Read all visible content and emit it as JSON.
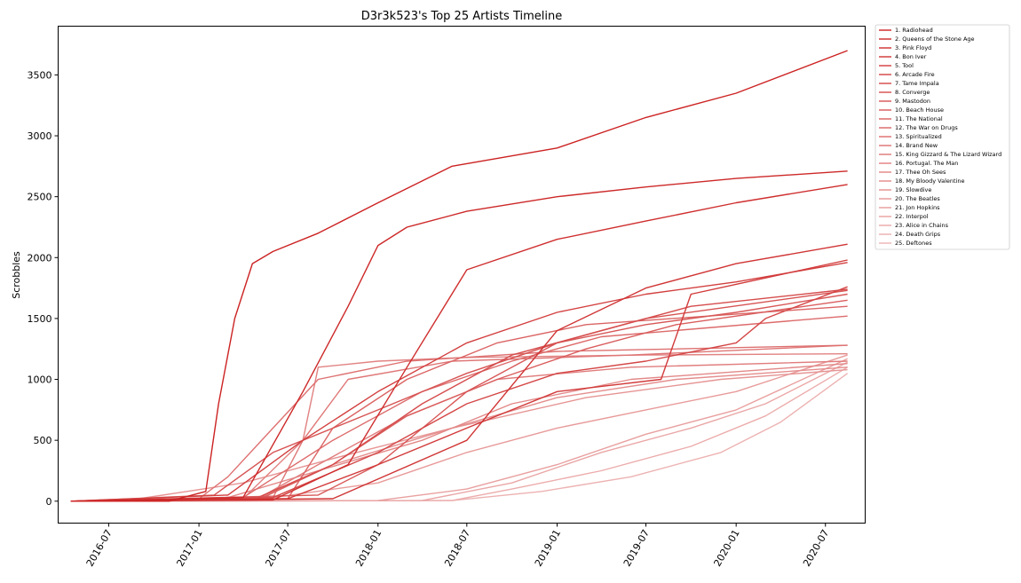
{
  "chart_data": {
    "type": "line",
    "title": "D3r3k523's Top 25 Artists Timeline",
    "xlabel": "",
    "ylabel": "Scrobbles",
    "x_ticks": [
      "2016-07",
      "2017-01",
      "2017-07",
      "2018-01",
      "2018-07",
      "2019-01",
      "2019-07",
      "2020-01",
      "2020-07"
    ],
    "y_ticks": [
      "0",
      "500",
      "1000",
      "1500",
      "2000",
      "2500",
      "3000",
      "3500"
    ],
    "xlim": [
      "2016-03-20",
      "2020-09-20"
    ],
    "ylim": [
      -180,
      3900
    ],
    "legend_position": "outside-right",
    "grid": false,
    "base_color": "#cc2222",
    "series": [
      {
        "name": "1. Radiohead",
        "x": [
          "2016-04-15",
          "2016-11-01",
          "2017-01-15",
          "2017-02-10",
          "2017-03-15",
          "2017-04-20",
          "2017-06-01",
          "2017-09-01",
          "2018-01-01",
          "2018-06-01",
          "2019-01-01",
          "2019-07-01",
          "2020-01-01",
          "2020-08-15"
        ],
        "values": [
          0,
          0,
          80,
          800,
          1500,
          1950,
          2050,
          2200,
          2450,
          2750,
          2900,
          3150,
          3350,
          3700
        ]
      },
      {
        "name": "2. Queens of the Stone Age",
        "x": [
          "2016-04-15",
          "2017-04-01",
          "2017-08-01",
          "2017-11-01",
          "2018-01-01",
          "2018-03-01",
          "2018-07-01",
          "2019-01-01",
          "2019-07-01",
          "2020-01-01",
          "2020-08-15"
        ],
        "values": [
          0,
          30,
          900,
          1600,
          2100,
          2250,
          2380,
          2500,
          2580,
          2650,
          2710
        ]
      },
      {
        "name": "3. Pink Floyd",
        "x": [
          "2016-04-15",
          "2017-06-01",
          "2017-11-01",
          "2018-03-01",
          "2018-07-01",
          "2019-01-01",
          "2019-07-01",
          "2020-01-01",
          "2020-08-15"
        ],
        "values": [
          0,
          10,
          300,
          1100,
          1900,
          2150,
          2300,
          2450,
          2600
        ]
      },
      {
        "name": "4. Bon Iver",
        "x": [
          "2016-04-15",
          "2017-10-01",
          "2018-07-01",
          "2019-01-01",
          "2019-07-01",
          "2020-01-01",
          "2020-08-15"
        ],
        "values": [
          0,
          20,
          500,
          1400,
          1750,
          1950,
          2110
        ]
      },
      {
        "name": "5. Tool",
        "x": [
          "2016-04-15",
          "2017-07-01",
          "2018-01-01",
          "2018-07-01",
          "2019-01-01",
          "2019-08-01",
          "2019-10-01",
          "2020-08-15"
        ],
        "values": [
          0,
          20,
          300,
          600,
          900,
          1000,
          1700,
          1980
        ]
      },
      {
        "name": "6. Arcade Fire",
        "x": [
          "2016-04-15",
          "2017-03-01",
          "2017-08-01",
          "2018-01-01",
          "2018-07-01",
          "2019-01-01",
          "2019-07-01",
          "2020-01-01",
          "2020-08-15"
        ],
        "values": [
          0,
          50,
          500,
          900,
          1300,
          1550,
          1700,
          1800,
          1960
        ]
      },
      {
        "name": "7. Tame Impala",
        "x": [
          "2016-04-15",
          "2017-06-01",
          "2018-01-01",
          "2018-07-01",
          "2019-01-01",
          "2019-07-01",
          "2020-01-01",
          "2020-03-01",
          "2020-08-15"
        ],
        "values": [
          0,
          30,
          400,
          800,
          1050,
          1150,
          1300,
          1500,
          1760
        ]
      },
      {
        "name": "8. Converge",
        "x": [
          "2016-04-15",
          "2017-05-01",
          "2017-10-01",
          "2018-04-01",
          "2018-10-01",
          "2019-04-01",
          "2019-10-01",
          "2020-08-15"
        ],
        "values": [
          0,
          30,
          300,
          800,
          1200,
          1400,
          1600,
          1740
        ]
      },
      {
        "name": "9. Mastodon",
        "x": [
          "2016-04-15",
          "2017-02-01",
          "2017-06-01",
          "2018-01-01",
          "2018-07-01",
          "2019-01-01",
          "2019-07-01",
          "2020-08-15"
        ],
        "values": [
          0,
          50,
          400,
          750,
          1050,
          1300,
          1500,
          1730
        ]
      },
      {
        "name": "10. Beach House",
        "x": [
          "2016-04-15",
          "2017-09-01",
          "2018-01-01",
          "2018-07-01",
          "2019-01-01",
          "2019-07-01",
          "2020-01-01",
          "2020-08-15"
        ],
        "values": [
          0,
          50,
          300,
          900,
          1300,
          1450,
          1550,
          1700
        ]
      },
      {
        "name": "11. The National",
        "x": [
          "2016-04-15",
          "2017-05-01",
          "2017-10-01",
          "2018-03-01",
          "2018-09-01",
          "2019-03-01",
          "2019-09-01",
          "2020-08-15"
        ],
        "values": [
          0,
          10,
          300,
          700,
          1000,
          1250,
          1450,
          1650
        ]
      },
      {
        "name": "12. The War on Drugs",
        "x": [
          "2016-04-15",
          "2017-07-01",
          "2017-10-01",
          "2018-03-01",
          "2018-09-01",
          "2019-03-01",
          "2020-08-15"
        ],
        "values": [
          0,
          20,
          600,
          1000,
          1300,
          1450,
          1600
        ]
      },
      {
        "name": "13. Spiritualized",
        "x": [
          "2016-04-15",
          "2017-04-01",
          "2017-10-01",
          "2018-04-01",
          "2018-10-01",
          "2019-04-01",
          "2020-08-15"
        ],
        "values": [
          0,
          30,
          500,
          900,
          1150,
          1350,
          1520
        ]
      },
      {
        "name": "14. Brand New",
        "x": [
          "2016-04-15",
          "2017-01-01",
          "2017-03-01",
          "2017-06-01",
          "2017-09-01",
          "2018-03-01",
          "2019-01-01",
          "2020-08-15"
        ],
        "values": [
          0,
          20,
          200,
          600,
          1000,
          1150,
          1230,
          1280
        ]
      },
      {
        "name": "15. King Gizzard & The Lizard Wizard",
        "x": [
          "2016-04-15",
          "2017-06-01",
          "2017-08-01",
          "2017-11-01",
          "2018-06-01",
          "2019-06-01",
          "2020-08-15"
        ],
        "values": [
          0,
          30,
          500,
          1000,
          1150,
          1200,
          1280
        ]
      },
      {
        "name": "16. Portugal. The Man",
        "x": [
          "2016-04-15",
          "2017-05-01",
          "2017-09-01",
          "2018-03-01",
          "2018-09-01",
          "2019-06-01",
          "2020-08-15"
        ],
        "values": [
          0,
          20,
          300,
          700,
          1000,
          1100,
          1150
        ]
      },
      {
        "name": "17. Thee Oh Sees",
        "x": [
          "2016-04-15",
          "2017-04-01",
          "2017-08-01",
          "2017-09-01",
          "2018-01-01",
          "2018-07-01",
          "2019-07-01",
          "2020-08-15"
        ],
        "values": [
          0,
          20,
          500,
          1100,
          1150,
          1180,
          1200,
          1210
        ]
      },
      {
        "name": "18. My Bloody Valentine",
        "x": [
          "2016-04-15",
          "2017-03-01",
          "2017-09-01",
          "2018-04-01",
          "2018-10-01",
          "2019-06-01",
          "2020-08-15"
        ],
        "values": [
          0,
          30,
          250,
          500,
          800,
          1000,
          1130
        ]
      },
      {
        "name": "19. Slowdive",
        "x": [
          "2016-04-15",
          "2017-05-01",
          "2017-10-01",
          "2018-06-01",
          "2019-01-01",
          "2019-09-01",
          "2020-08-15"
        ],
        "values": [
          0,
          20,
          300,
          600,
          850,
          1000,
          1100
        ]
      },
      {
        "name": "20. The Beatles",
        "x": [
          "2016-04-15",
          "2016-09-01",
          "2017-04-01",
          "2017-10-01",
          "2018-06-01",
          "2019-03-01",
          "2019-12-01",
          "2020-08-15"
        ],
        "values": [
          0,
          20,
          150,
          350,
          600,
          850,
          1000,
          1080
        ]
      },
      {
        "name": "21. Jon Hopkins",
        "x": [
          "2016-04-15",
          "2017-06-01",
          "2018-01-01",
          "2018-07-01",
          "2019-01-01",
          "2019-07-01",
          "2020-01-01",
          "2020-08-15"
        ],
        "values": [
          0,
          30,
          150,
          400,
          600,
          750,
          900,
          1200
        ]
      },
      {
        "name": "22. Interpol",
        "x": [
          "2016-04-15",
          "2018-01-01",
          "2018-07-01",
          "2019-01-01",
          "2019-07-01",
          "2020-01-01",
          "2020-08-15"
        ],
        "values": [
          0,
          5,
          100,
          300,
          550,
          750,
          1170
        ]
      },
      {
        "name": "23. Alice in Chains",
        "x": [
          "2016-04-15",
          "2018-04-01",
          "2018-10-01",
          "2019-04-01",
          "2019-10-01",
          "2020-03-01",
          "2020-08-15"
        ],
        "values": [
          0,
          5,
          150,
          400,
          600,
          800,
          1140
        ]
      },
      {
        "name": "24. Death Grips",
        "x": [
          "2016-04-15",
          "2018-06-01",
          "2018-10-01",
          "2019-04-01",
          "2019-10-01",
          "2020-03-01",
          "2020-08-15"
        ],
        "values": [
          0,
          5,
          100,
          250,
          450,
          700,
          1100
        ]
      },
      {
        "name": "25. Deftones",
        "x": [
          "2016-04-15",
          "2018-06-01",
          "2018-12-01",
          "2019-06-01",
          "2019-12-01",
          "2020-04-01",
          "2020-08-15"
        ],
        "values": [
          0,
          5,
          80,
          200,
          400,
          650,
          1050
        ]
      }
    ]
  }
}
